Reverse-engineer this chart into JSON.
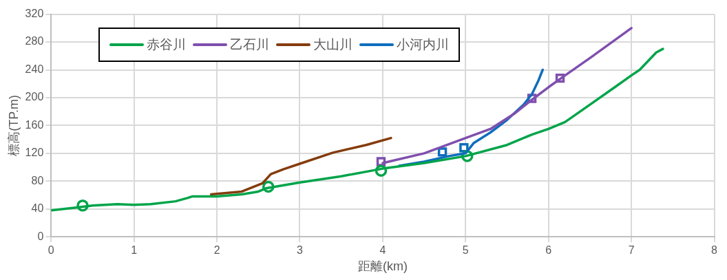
{
  "chart_data": {
    "type": "line",
    "xlabel": "距離(km)",
    "ylabel": "標高(TP.m)",
    "xlim": [
      0,
      8
    ],
    "xticks": [
      0,
      1,
      2,
      3,
      4,
      5,
      6,
      7,
      8
    ],
    "ylim": [
      0,
      320
    ],
    "yticks": [
      0,
      40,
      80,
      120,
      160,
      200,
      240,
      280,
      320
    ],
    "grid": true,
    "legend": "top left",
    "marker": "none",
    "line_style": "solid",
    "series": [
      {
        "name": "赤谷川",
        "color": "#00a44a",
        "x": [
          0,
          0.3,
          0.5,
          0.8,
          1,
          1.2,
          1.5,
          1.65,
          1.7,
          2,
          2.3,
          2.5,
          2.6,
          3,
          3.5,
          4,
          4.5,
          5,
          5.5,
          5.8,
          6,
          6.2,
          6.5,
          6.8,
          7,
          7.1,
          7.3,
          7.38
        ],
        "values": [
          38,
          42,
          45,
          47,
          46,
          47,
          51,
          56,
          58,
          58,
          61,
          65,
          70,
          78,
          87,
          98,
          106,
          116,
          132,
          147,
          155,
          165,
          190,
          215,
          232,
          240,
          265,
          270
        ]
      },
      {
        "name": "乙石川",
        "color": "#7f4fae",
        "x": [
          4,
          4.5,
          5,
          5.3,
          5.6,
          5.8,
          6,
          6.2,
          6.5,
          7
        ],
        "values": [
          106,
          120,
          142,
          155,
          178,
          197,
          215,
          232,
          257,
          300
        ]
      },
      {
        "name": "大山川",
        "color": "#843c0c",
        "x": [
          1.93,
          2.3,
          2.55,
          2.65,
          2.8,
          3,
          3.4,
          3.8,
          4.1
        ],
        "values": [
          61,
          65,
          77,
          90,
          97,
          105,
          121,
          132,
          142
        ]
      },
      {
        "name": "小河内川",
        "color": "#0e6dbd",
        "x": [
          4.2,
          4.5,
          4.8,
          5,
          5.1,
          5.3,
          5.5,
          5.7,
          5.8,
          5.88,
          5.93
        ],
        "values": [
          102,
          108,
          116,
          120,
          135,
          150,
          168,
          190,
          205,
          225,
          240
        ]
      },
      {
        "type": "scatter",
        "marker": "circle",
        "color": "#00a44a",
        "x": [
          0.38,
          2.62,
          3.98,
          5.02
        ],
        "values": [
          45,
          72,
          95,
          116
        ]
      },
      {
        "type": "scatter",
        "marker": "square",
        "color": "#7f4fae",
        "x": [
          3.98,
          5.8,
          6.14
        ],
        "values": [
          108,
          199,
          228
        ]
      },
      {
        "type": "scatter",
        "marker": "square",
        "color": "#0e6dbd",
        "x": [
          4.72,
          4.98
        ],
        "values": [
          122,
          128
        ]
      }
    ]
  }
}
